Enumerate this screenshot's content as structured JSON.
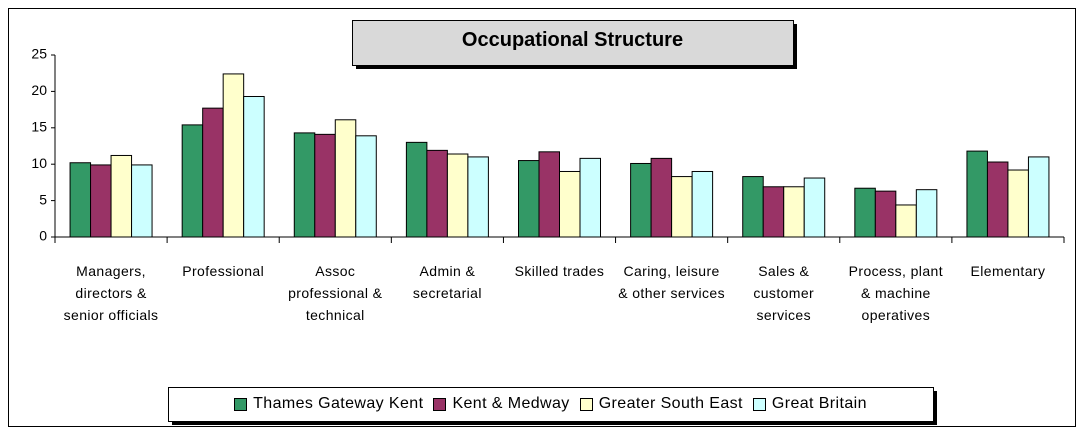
{
  "chart_data": {
    "type": "bar",
    "title": "Occupational Structure",
    "categories": [
      "Managers, directors & senior officials",
      "Professional",
      "Assoc professional & technical",
      "Admin & secretarial",
      "Skilled trades",
      "Caring, leisure & other services",
      "Sales & customer services",
      "Process, plant & machine operatives",
      "Elementary"
    ],
    "series": [
      {
        "name": "Thames Gateway Kent",
        "color": "#339966",
        "values": [
          10.2,
          15.4,
          14.3,
          13.0,
          10.5,
          10.1,
          8.3,
          6.7,
          11.8
        ]
      },
      {
        "name": "Kent & Medway",
        "color": "#993366",
        "values": [
          9.9,
          17.7,
          14.1,
          11.9,
          11.7,
          10.8,
          6.9,
          6.3,
          10.3
        ]
      },
      {
        "name": "Greater South East",
        "color": "#ffffcc",
        "values": [
          11.2,
          22.4,
          16.1,
          11.4,
          9.0,
          8.3,
          6.9,
          4.4,
          9.2
        ]
      },
      {
        "name": "Great Britain",
        "color": "#ccffff",
        "values": [
          9.9,
          19.3,
          13.9,
          11.0,
          10.8,
          9.0,
          8.1,
          6.5,
          11.0
        ]
      }
    ],
    "ylim": [
      0,
      25
    ],
    "yticks": [
      0,
      5,
      10,
      15,
      20,
      25
    ],
    "legend": "bottom"
  }
}
